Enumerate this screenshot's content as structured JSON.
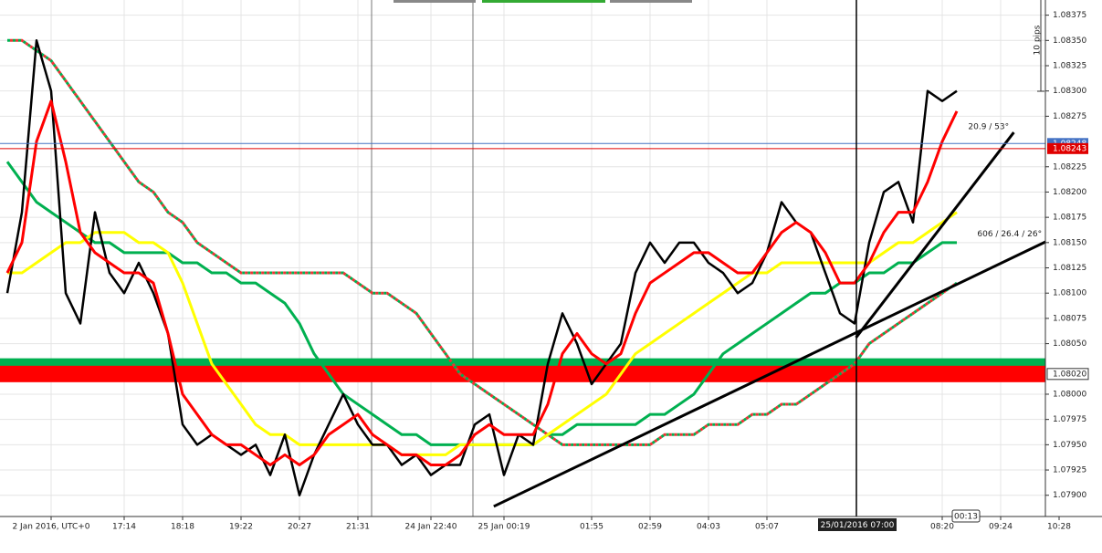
{
  "chart_data": {
    "type": "line",
    "categories": [
      null,
      null,
      null,
      "2 Jan 2016, UTC+0",
      null,
      null,
      null,
      null,
      "17:14",
      null,
      null,
      null,
      "18:18",
      null,
      null,
      null,
      "19:22",
      null,
      null,
      null,
      "20:27",
      null,
      null,
      null,
      "21:31",
      null,
      null,
      null,
      null,
      "24 Jan 22:40",
      null,
      null,
      null,
      null,
      "25 Jan 00:19",
      null,
      null,
      null,
      null,
      null,
      "01:55",
      null,
      null,
      null,
      "02:59",
      null,
      null,
      null,
      "04:03",
      null,
      null,
      null,
      "05:07",
      null,
      null,
      null,
      null,
      null,
      null,
      null,
      null,
      null,
      null,
      null,
      "08:20",
      null,
      null,
      null,
      "09:24",
      null,
      null,
      null,
      "10:28"
    ],
    "series": [
      {
        "color": "#00b050",
        "style": "dotted",
        "values": [
          1.0835,
          1.0835,
          1.0834,
          1.0833,
          1.0831,
          1.0829,
          1.0827,
          1.0825,
          1.0823,
          1.0821,
          1.082,
          1.0818,
          1.0817,
          1.0815,
          1.0814,
          1.0813,
          1.0812,
          1.0812,
          1.0812,
          1.0812,
          1.0812,
          1.0812,
          1.0812,
          1.0812,
          1.0811,
          1.081,
          1.081,
          1.0809,
          1.0808,
          1.0806,
          1.0804,
          1.0802,
          1.0801,
          1.08,
          1.0799,
          1.0798,
          1.0797,
          1.0796,
          1.0795,
          1.0795,
          1.0795,
          1.0795,
          1.0795,
          1.0795,
          1.0795,
          1.0796,
          1.0796,
          1.0796,
          1.0797,
          1.0797,
          1.0797,
          1.0798,
          1.0798,
          1.0799,
          1.0799,
          1.08,
          1.0801,
          1.0802,
          1.0803,
          1.0805,
          1.0806,
          1.0807,
          1.0808,
          1.0809,
          1.081,
          1.0811,
          null,
          null,
          null,
          null,
          null,
          null,
          null
        ]
      },
      {
        "color": "#00b050",
        "style": "solid",
        "values": [
          1.0823,
          1.0821,
          1.0819,
          1.0818,
          1.0817,
          1.0816,
          1.0815,
          1.0815,
          1.0814,
          1.0814,
          1.0814,
          1.0814,
          1.0813,
          1.0813,
          1.0812,
          1.0812,
          1.0811,
          1.0811,
          1.081,
          1.0809,
          1.0807,
          1.0804,
          1.0802,
          1.08,
          1.0799,
          1.0798,
          1.0797,
          1.0796,
          1.0796,
          1.0795,
          1.0795,
          1.0795,
          1.0795,
          1.0795,
          1.0795,
          1.0795,
          1.0795,
          1.0796,
          1.0796,
          1.0797,
          1.0797,
          1.0797,
          1.0797,
          1.0797,
          1.0798,
          1.0798,
          1.0799,
          1.08,
          1.0802,
          1.0804,
          1.0805,
          1.0806,
          1.0807,
          1.0808,
          1.0809,
          1.081,
          1.081,
          1.0811,
          1.0811,
          1.0812,
          1.0812,
          1.0813,
          1.0813,
          1.0814,
          1.0815,
          1.0815,
          null,
          null,
          null,
          null,
          null,
          null,
          null
        ]
      },
      {
        "color": "#ffff00",
        "style": "solid",
        "values": [
          1.0812,
          1.0812,
          1.0813,
          1.0814,
          1.0815,
          1.0815,
          1.0816,
          1.0816,
          1.0816,
          1.0815,
          1.0815,
          1.0814,
          1.0811,
          1.0807,
          1.0803,
          1.0801,
          1.0799,
          1.0797,
          1.0796,
          1.0796,
          1.0795,
          1.0795,
          1.0795,
          1.0795,
          1.0795,
          1.0795,
          1.0795,
          1.0794,
          1.0794,
          1.0794,
          1.0794,
          1.0795,
          1.0795,
          1.0795,
          1.0795,
          1.0795,
          1.0795,
          1.0796,
          1.0797,
          1.0798,
          1.0799,
          1.08,
          1.0802,
          1.0804,
          1.0805,
          1.0806,
          1.0807,
          1.0808,
          1.0809,
          1.081,
          1.0811,
          1.0812,
          1.0812,
          1.0813,
          1.0813,
          1.0813,
          1.0813,
          1.0813,
          1.0813,
          1.0813,
          1.0814,
          1.0815,
          1.0815,
          1.0816,
          1.0817,
          1.0818,
          null,
          null,
          null,
          null,
          null,
          null,
          null
        ]
      },
      {
        "color": "#000000",
        "style": "price",
        "values": [
          1.081,
          1.0818,
          1.0835,
          1.083,
          1.081,
          1.0807,
          1.0818,
          1.0812,
          1.081,
          1.0813,
          1.081,
          1.0806,
          1.0797,
          1.0795,
          1.0796,
          1.0795,
          1.0794,
          1.0795,
          1.0792,
          1.0796,
          1.079,
          1.0794,
          1.0797,
          1.08,
          1.0797,
          1.0795,
          1.0795,
          1.0793,
          1.0794,
          1.0792,
          1.0793,
          1.0793,
          1.0797,
          1.0798,
          1.0792,
          1.0796,
          1.0795,
          1.0803,
          1.0808,
          1.0805,
          1.0801,
          1.0803,
          1.0805,
          1.0812,
          1.0815,
          1.0813,
          1.0815,
          1.0815,
          1.0813,
          1.0812,
          1.081,
          1.0811,
          1.0814,
          1.0819,
          1.0817,
          1.0816,
          1.0812,
          1.0808,
          1.0807,
          1.0815,
          1.082,
          1.0821,
          1.0817,
          1.083,
          1.0829,
          1.083,
          null,
          null,
          null,
          null,
          null,
          null,
          null
        ]
      },
      {
        "color": "#ff0000",
        "style": "solid",
        "values": [
          1.0812,
          1.0815,
          1.0825,
          1.0829,
          1.0823,
          1.0816,
          1.0814,
          1.0813,
          1.0812,
          1.0812,
          1.0811,
          1.0806,
          1.08,
          1.0798,
          1.0796,
          1.0795,
          1.0795,
          1.0794,
          1.0793,
          1.0794,
          1.0793,
          1.0794,
          1.0796,
          1.0797,
          1.0798,
          1.0796,
          1.0795,
          1.0794,
          1.0794,
          1.0793,
          1.0793,
          1.0794,
          1.0796,
          1.0797,
          1.0796,
          1.0796,
          1.0796,
          1.0799,
          1.0804,
          1.0806,
          1.0804,
          1.0803,
          1.0804,
          1.0808,
          1.0811,
          1.0812,
          1.0813,
          1.0814,
          1.0814,
          1.0813,
          1.0812,
          1.0812,
          1.0814,
          1.0816,
          1.0817,
          1.0816,
          1.0814,
          1.0811,
          1.0811,
          1.0813,
          1.0816,
          1.0818,
          1.0818,
          1.0821,
          1.0825,
          1.0828,
          null,
          null,
          null,
          null,
          null,
          null,
          null
        ]
      }
    ],
    "ylim": [
      1.07879,
      1.0839
    ],
    "yticks": [
      {
        "value": 1.079,
        "label": "1.07900"
      },
      1.07925,
      {
        "value": 1.0795,
        "label": "1.07950"
      },
      1.07975,
      {
        "value": 1.08,
        "label": "1.08000"
      },
      {
        "value": 1.0805,
        "label": "1.08050"
      },
      1.08075,
      {
        "value": 1.081,
        "label": "1.08100"
      },
      1.08125,
      {
        "value": 1.0815,
        "label": "1.08150"
      },
      1.08175,
      {
        "value": 1.082,
        "label": "1.08200"
      },
      1.08225,
      1.08275,
      {
        "value": 1.083,
        "label": "1.08300"
      },
      1.08325,
      {
        "value": 1.0835,
        "label": "1.08350"
      },
      1.08375
    ],
    "grid": true,
    "levels": [
      {
        "value": 1.08031,
        "color": "#00b050"
      },
      {
        "value": 1.0802,
        "color": "#ff0000",
        "label": "1.08020"
      }
    ],
    "price_lines": [
      {
        "value": 1.08248,
        "color": "#4472c4",
        "label": "1.08248"
      },
      {
        "value": 1.08243,
        "color": "#e00000",
        "label": "1.08243"
      }
    ],
    "trendlines": [
      {
        "label": "606 / 26.4 / 26°",
        "x": [
          33.3,
          71.4
        ],
        "y": [
          1.07889,
          1.08153
        ]
      },
      {
        "label": "20.9 / 53°",
        "x": [
          58.1,
          68.9
        ],
        "y": [
          1.08056,
          1.08259
        ]
      }
    ],
    "scale_label": "10 pips",
    "crosshair_label": "25/01/2016 07:00",
    "countdown": "00:13"
  }
}
